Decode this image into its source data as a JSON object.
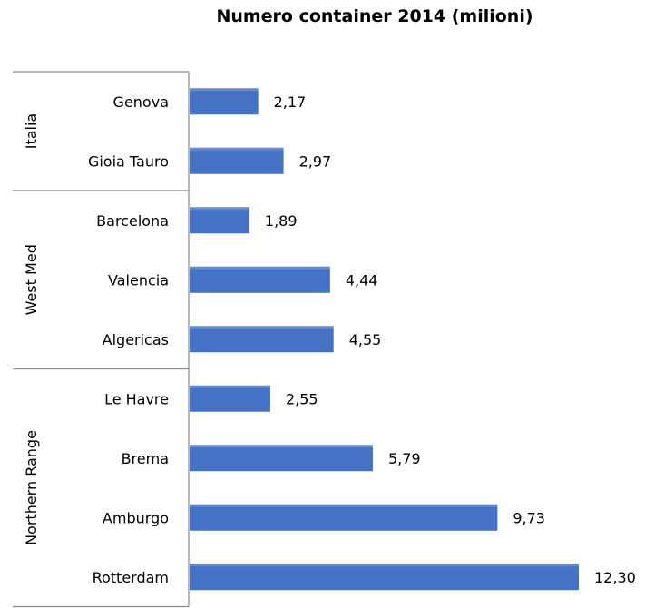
{
  "chart_data": {
    "type": "bar",
    "orientation": "horizontal",
    "title": "Numero container 2014 (milioni)",
    "xlabel": "",
    "ylabel": "",
    "xlim": [
      0,
      12.3
    ],
    "grid": false,
    "legend": "none",
    "bar_color": "#4472C4",
    "groups": [
      {
        "label": "Italia",
        "categories": [
          "Genova",
          "Gioia Tauro"
        ]
      },
      {
        "label": "West Med",
        "categories": [
          "Barcelona",
          "Valencia",
          "Algericas"
        ]
      },
      {
        "label": "Northern Range",
        "categories": [
          "Le Havre",
          "Brema",
          "Amburgo",
          "Rotterdam"
        ]
      }
    ],
    "categories": [
      "Genova",
      "Gioia Tauro",
      "Barcelona",
      "Valencia",
      "Algericas",
      "Le Havre",
      "Brema",
      "Amburgo",
      "Rotterdam"
    ],
    "values": [
      2.17,
      2.97,
      1.89,
      4.44,
      4.55,
      2.55,
      5.79,
      9.73,
      12.3
    ],
    "value_labels": [
      "2,17",
      "2,97",
      "1,89",
      "4,44",
      "4,55",
      "2,55",
      "5,79",
      "9,73",
      "12,30"
    ]
  }
}
